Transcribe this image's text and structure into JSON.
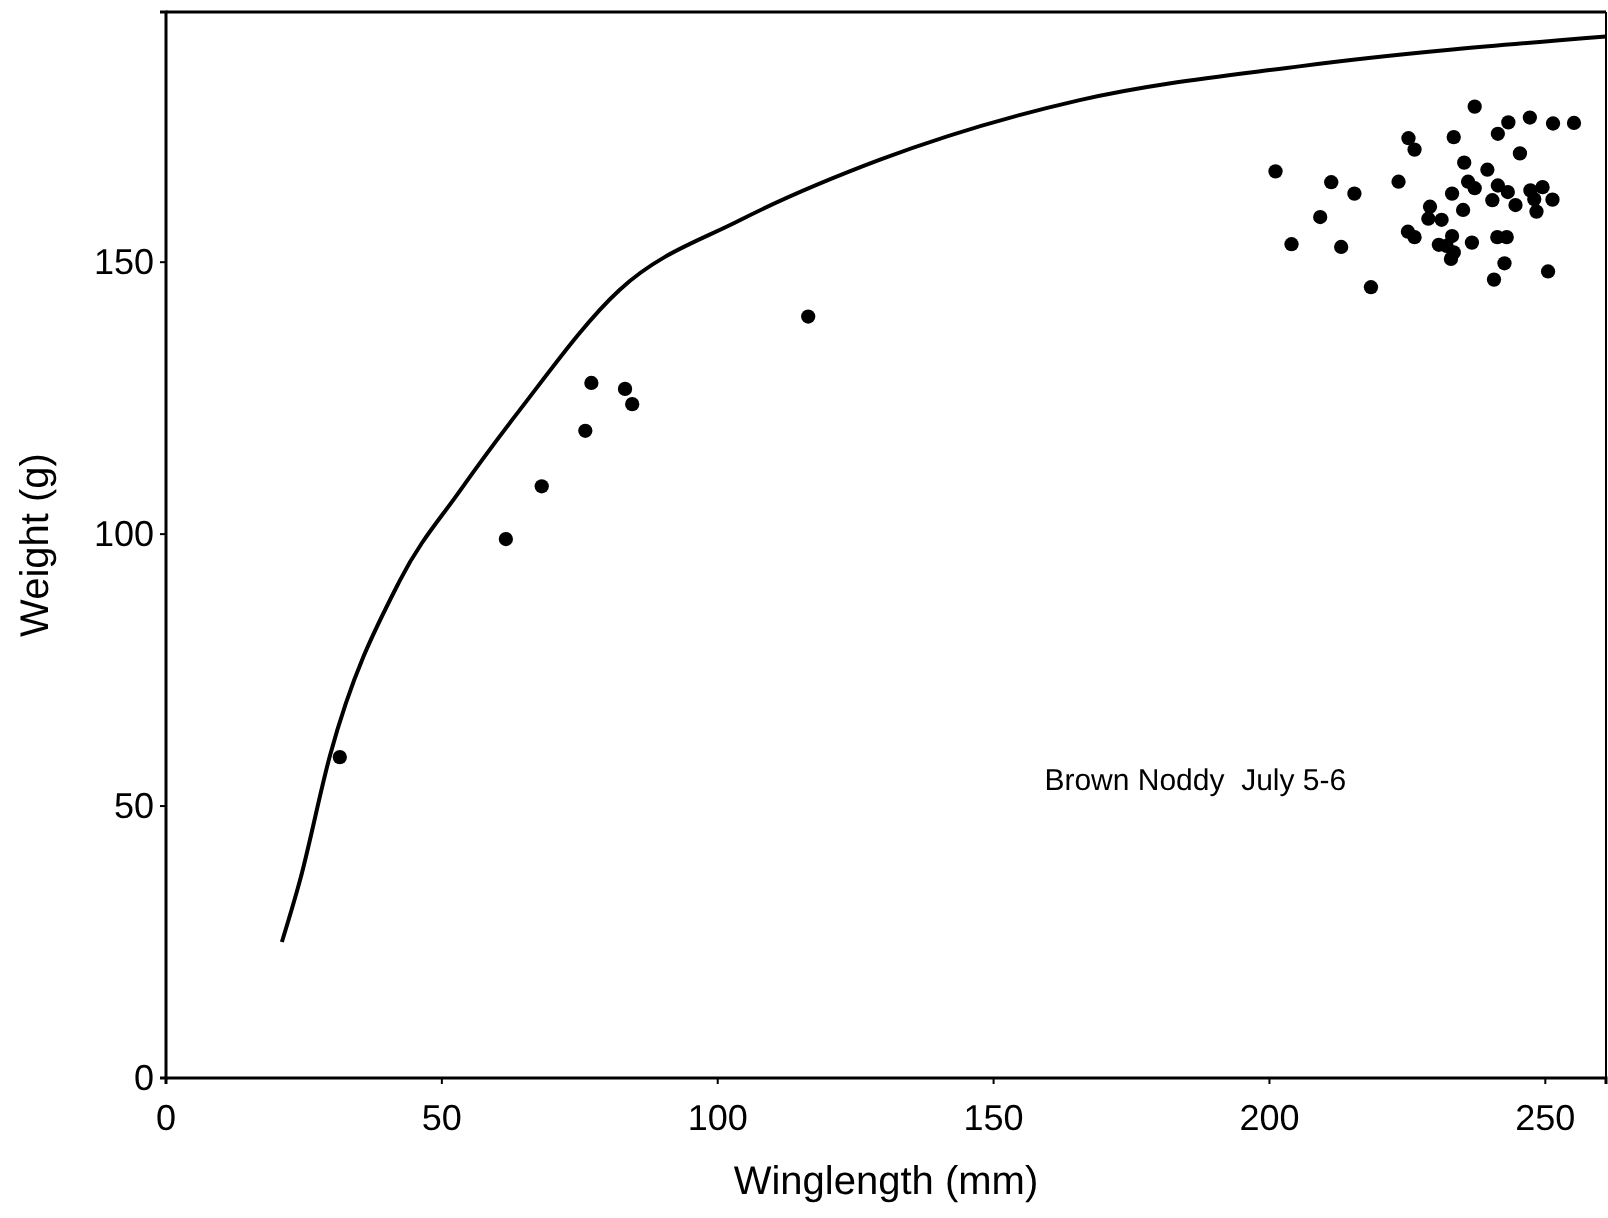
{
  "chart_data": {
    "type": "scatter",
    "xlabel": "Winglength (mm)",
    "ylabel": "Weight (g)",
    "xlim": [
      0,
      261
    ],
    "ylim": [
      0,
      196
    ],
    "xticks": [
      0,
      50,
      100,
      150,
      200,
      250
    ],
    "yticks": [
      0,
      50,
      100,
      150
    ],
    "grid": false,
    "marker": "circle",
    "annotations": [
      "Brown Noddy  July 5-6"
    ],
    "series": [
      {
        "type": "line",
        "color": "#000000",
        "marker": "none",
        "x": [
          21,
          24.3,
          29.7,
          42.4,
          53.3,
          64.1,
          82.2,
          104,
          129.3,
          165.6,
          205.4,
          261
        ],
        "values": [
          25,
          36.4,
          59.2,
          91.5,
          108,
          122.8,
          144.9,
          157.7,
          168.8,
          179.8,
          186,
          191.5
        ]
      },
      {
        "color": "#000000",
        "x": [
          31.5,
          61.6,
          68.1,
          76.0,
          77.1,
          83.2,
          84.5,
          116.4,
          237.2,
          243.3,
          247.2,
          251.4,
          255.2,
          225.2,
          226.3,
          233.4,
          241.4,
          245.4,
          201.1,
          235.3,
          239.5,
          211.2,
          215.4,
          223.4,
          236.0,
          237.2,
          241.4,
          243.2,
          240.4,
          244.6,
          233.1,
          247.3,
          249.5,
          248.0,
          251.3,
          248.4,
          235.1,
          209.2,
          229.1,
          228.8,
          231.2,
          225.1,
          226.3,
          233.1,
          230.7,
          232.1,
          233.4,
          232.9,
          236.7,
          241.3,
          243.0,
          204.0,
          213.0,
          242.6,
          250.5,
          240.7,
          218.4
        ],
        "values": [
          59,
          99.1,
          108.8,
          119.0,
          127.8,
          126.7,
          123.9,
          140.0,
          178.6,
          175.7,
          176.6,
          175.5,
          175.6,
          172.8,
          170.7,
          173.0,
          173.6,
          170.0,
          166.7,
          168.3,
          167.0,
          164.7,
          162.6,
          164.8,
          164.8,
          163.6,
          164.1,
          162.9,
          161.4,
          160.5,
          162.6,
          163.2,
          163.8,
          161.6,
          161.5,
          159.3,
          159.6,
          158.3,
          160.2,
          158.0,
          157.8,
          155.6,
          154.6,
          154.8,
          153.2,
          153.0,
          151.8,
          150.6,
          153.6,
          154.6,
          154.6,
          153.3,
          152.8,
          149.8,
          148.3,
          146.8,
          145.4
        ]
      }
    ]
  }
}
